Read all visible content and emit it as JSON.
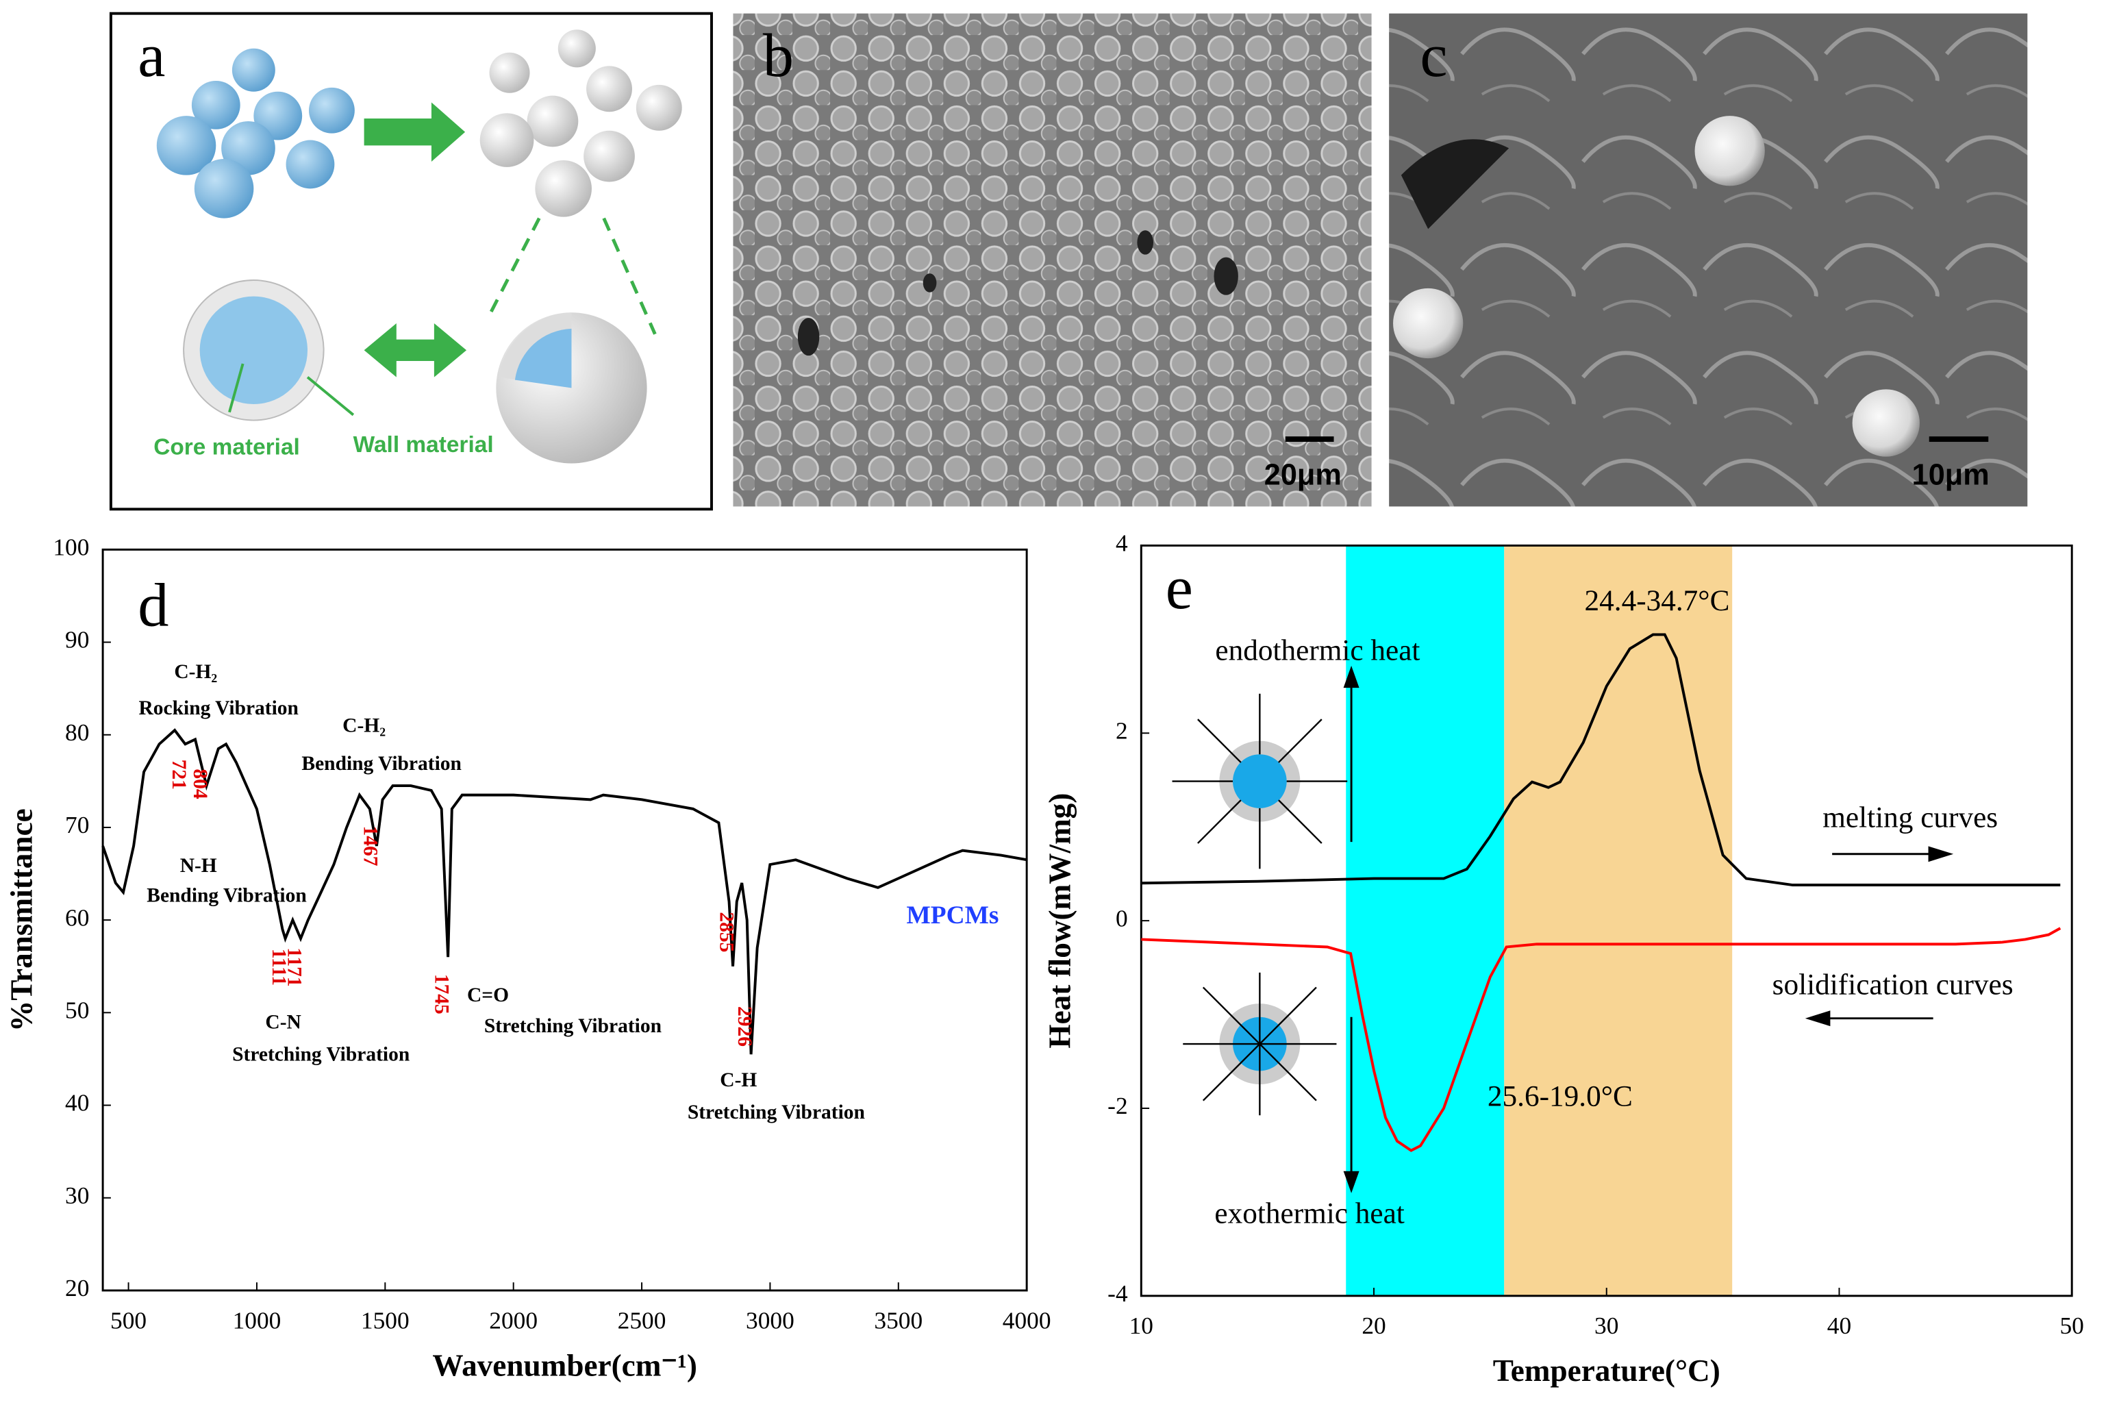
{
  "panels": {
    "a": {
      "label": "a",
      "core": "Core material",
      "wall": "Wall material"
    },
    "b": {
      "label": "b",
      "scale": "20μm"
    },
    "c": {
      "label": "c",
      "scale": "10μm"
    }
  },
  "chart_data": [
    {
      "type": "line",
      "label": "d",
      "xlabel": "Wavenumber(cm⁻¹)",
      "ylabel": "%Transmittance",
      "xlim": [
        400,
        4000
      ],
      "ylim": [
        20,
        100
      ],
      "xticks": [
        500,
        1000,
        1500,
        2000,
        2500,
        3000,
        3500,
        4000
      ],
      "yticks": [
        20,
        30,
        40,
        50,
        60,
        70,
        80,
        90,
        100
      ],
      "series": [
        {
          "name": "MPCMs",
          "color": "#000000",
          "name_color": "#1f3fff",
          "x": [
            400,
            450,
            480,
            520,
            560,
            620,
            680,
            721,
            760,
            804,
            850,
            880,
            920,
            1000,
            1050,
            1100,
            1111,
            1140,
            1171,
            1200,
            1250,
            1300,
            1350,
            1400,
            1440,
            1467,
            1490,
            1530,
            1600,
            1680,
            1720,
            1745,
            1760,
            1800,
            2000,
            2300,
            2350,
            2500,
            2700,
            2800,
            2840,
            2855,
            2870,
            2890,
            2910,
            2926,
            2950,
            3000,
            3100,
            3300,
            3420,
            3500,
            3700,
            3750,
            3900,
            4000
          ],
          "values": [
            68,
            64,
            63,
            68,
            76,
            79,
            80.5,
            79,
            79.5,
            74.5,
            78.5,
            79,
            77,
            72,
            66,
            59,
            58,
            60,
            58,
            60,
            63,
            66,
            70,
            73.5,
            72,
            68,
            73,
            74.5,
            74.5,
            74,
            72,
            56,
            72,
            73.5,
            73.5,
            73,
            73.5,
            73,
            72,
            70.5,
            62,
            55,
            62,
            64,
            60,
            45.5,
            57,
            66,
            66.5,
            64.5,
            63.5,
            64.5,
            67,
            67.5,
            67,
            66.5
          ]
        }
      ],
      "peak_labels": [
        721,
        804,
        1111,
        1171,
        1467,
        1745,
        2855,
        2926
      ],
      "annotations": [
        "C-H₂",
        "Rocking  Vibration",
        "C-H₂",
        "Bending Vibration",
        "N-H",
        "Bending Vibration",
        "C-N",
        "Stretching Vibration",
        "C=O",
        "Stretching Vibration",
        "C-H",
        "Stretching Vibration"
      ]
    },
    {
      "type": "line",
      "label": "e",
      "xlabel": "Temperature(°C)",
      "ylabel": "Heat flow(mW/mg)",
      "xlim": [
        10,
        50
      ],
      "ylim": [
        -4,
        4
      ],
      "xticks": [
        10,
        20,
        30,
        40,
        50
      ],
      "yticks": [
        -4,
        -2,
        0,
        2,
        4
      ],
      "bands": [
        {
          "from": 18.8,
          "to": 25.6,
          "color": "#00ffff"
        },
        {
          "from": 25.6,
          "to": 35.4,
          "color": "#f8d594"
        }
      ],
      "series": [
        {
          "name": "melting curves",
          "color": "#000000",
          "x": [
            10,
            15,
            20,
            23,
            24,
            25,
            26,
            26.8,
            27.5,
            28,
            29,
            30,
            31,
            32,
            32.5,
            33,
            34,
            35,
            36,
            38,
            40,
            45,
            49.5
          ],
          "values": [
            0.4,
            0.42,
            0.45,
            0.45,
            0.55,
            0.9,
            1.3,
            1.48,
            1.42,
            1.48,
            1.9,
            2.5,
            2.9,
            3.05,
            3.05,
            2.8,
            1.6,
            0.7,
            0.45,
            0.38,
            0.38,
            0.38,
            0.38
          ]
        },
        {
          "name": "solidification curves",
          "color": "#ff0000",
          "x": [
            10,
            15,
            18,
            19,
            19.5,
            20,
            20.5,
            21,
            21.6,
            22,
            23,
            24,
            25,
            25.7,
            27,
            35,
            45,
            47,
            48,
            49,
            49.5
          ],
          "values": [
            -0.2,
            -0.25,
            -0.28,
            -0.35,
            -1.0,
            -1.6,
            -2.1,
            -2.35,
            -2.45,
            -2.4,
            -2.0,
            -1.3,
            -0.6,
            -0.28,
            -0.25,
            -0.25,
            -0.25,
            -0.23,
            -0.2,
            -0.15,
            -0.08
          ]
        }
      ],
      "annotations": [
        "24.4-34.7°C",
        "25.6-19.0°C",
        "endothermic heat",
        "exothermic heat"
      ]
    }
  ]
}
